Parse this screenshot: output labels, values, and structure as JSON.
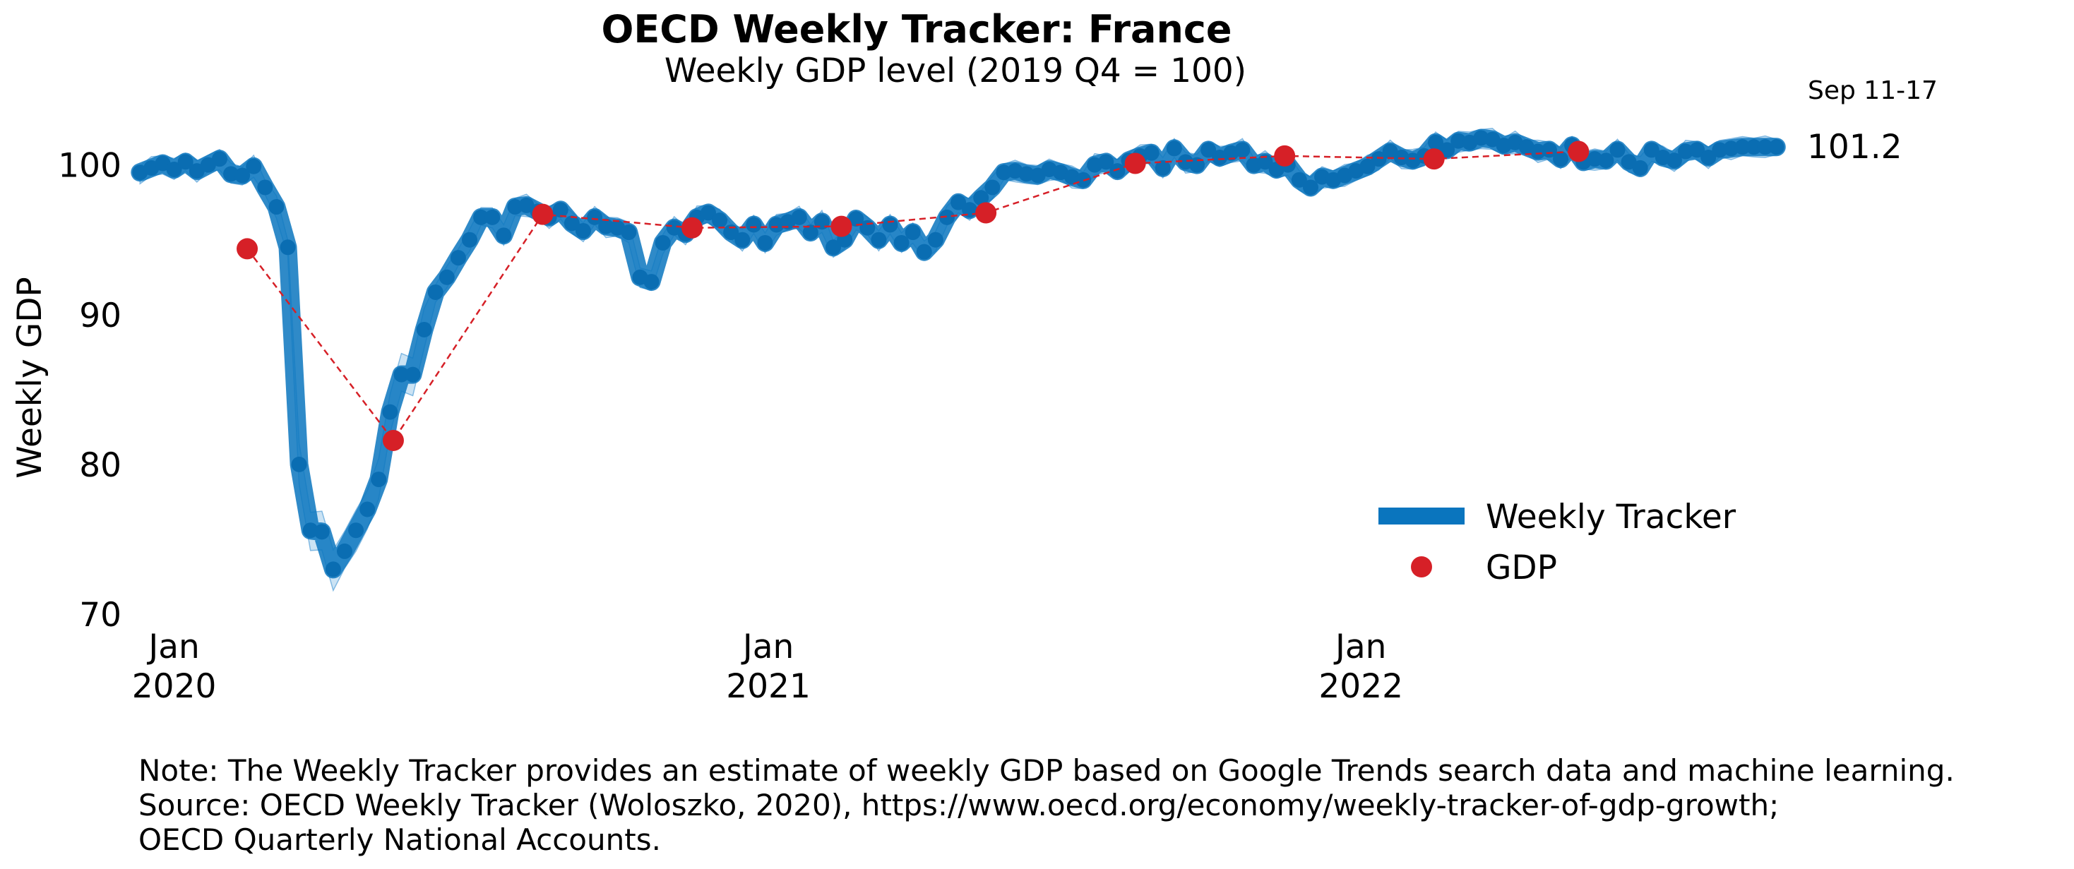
{
  "chart_data": {
    "type": "line",
    "title": "OECD Weekly Tracker: France",
    "subtitle": "Weekly GDP level (2019 Q4 = 100)",
    "ylabel": "Weekly GDP",
    "ylim": [
      70,
      103
    ],
    "yticks": [
      70,
      80,
      90,
      100
    ],
    "xlim": [
      "2019-12-10",
      "2022-09-18"
    ],
    "xticks": [
      {
        "date": "2020-01-01",
        "label_top": "Jan",
        "label_bottom": "2020"
      },
      {
        "date": "2021-01-01",
        "label_top": "Jan",
        "label_bottom": "2021"
      },
      {
        "date": "2022-01-01",
        "label_top": "Jan",
        "label_bottom": "2022"
      }
    ],
    "grid": false,
    "legend_position": "bottom-right",
    "latest_period_label": "Sep 11-17",
    "latest_value_label": "101.2",
    "colors": {
      "tracker": "#0a75be",
      "band": "#a9d0ec",
      "gdp": "#d62027"
    },
    "series": [
      {
        "name": "Weekly Tracker",
        "style": "thick-line",
        "x": [
          "2019-12-11",
          "2019-12-18",
          "2019-12-25",
          "2020-01-01",
          "2020-01-08",
          "2020-01-15",
          "2020-01-22",
          "2020-01-29",
          "2020-02-05",
          "2020-02-12",
          "2020-02-19",
          "2020-02-26",
          "2020-03-04",
          "2020-03-11",
          "2020-03-18",
          "2020-03-25",
          "2020-04-01",
          "2020-04-08",
          "2020-04-15",
          "2020-04-22",
          "2020-04-29",
          "2020-05-06",
          "2020-05-13",
          "2020-05-20",
          "2020-05-27",
          "2020-06-03",
          "2020-06-10",
          "2020-06-17",
          "2020-06-24",
          "2020-07-01",
          "2020-07-08",
          "2020-07-15",
          "2020-07-22",
          "2020-07-29",
          "2020-08-05",
          "2020-08-12",
          "2020-08-19",
          "2020-08-26",
          "2020-09-02",
          "2020-09-09",
          "2020-09-16",
          "2020-09-23",
          "2020-09-30",
          "2020-10-07",
          "2020-10-14",
          "2020-10-21",
          "2020-10-28",
          "2020-11-04",
          "2020-11-11",
          "2020-11-18",
          "2020-11-25",
          "2020-12-02",
          "2020-12-09",
          "2020-12-16",
          "2020-12-23",
          "2020-12-30",
          "2021-01-06",
          "2021-01-13",
          "2021-01-20",
          "2021-01-27",
          "2021-02-03",
          "2021-02-10",
          "2021-02-17",
          "2021-02-24",
          "2021-03-03",
          "2021-03-10",
          "2021-03-17",
          "2021-03-24",
          "2021-03-31",
          "2021-04-07",
          "2021-04-14",
          "2021-04-21",
          "2021-04-28",
          "2021-05-05",
          "2021-05-12",
          "2021-05-19",
          "2021-05-26",
          "2021-06-02",
          "2021-06-09",
          "2021-06-16",
          "2021-06-23",
          "2021-06-30",
          "2021-07-07",
          "2021-07-14",
          "2021-07-21",
          "2021-07-28",
          "2021-08-04",
          "2021-08-11",
          "2021-08-18",
          "2021-08-25",
          "2021-09-01",
          "2021-09-08",
          "2021-09-15",
          "2021-09-22",
          "2021-09-29",
          "2021-10-06",
          "2021-10-13",
          "2021-10-20",
          "2021-10-27",
          "2021-11-03",
          "2021-11-10",
          "2021-11-17",
          "2021-11-24",
          "2021-12-01",
          "2021-12-08",
          "2021-12-15",
          "2021-12-22",
          "2021-12-29",
          "2022-01-05",
          "2022-01-12",
          "2022-01-19",
          "2022-01-26",
          "2022-02-02",
          "2022-02-09",
          "2022-02-16",
          "2022-02-23",
          "2022-03-02",
          "2022-03-09",
          "2022-03-16",
          "2022-03-23",
          "2022-03-30",
          "2022-04-06",
          "2022-04-13",
          "2022-04-20",
          "2022-04-27",
          "2022-05-04",
          "2022-05-11",
          "2022-05-18",
          "2022-05-25",
          "2022-06-01",
          "2022-06-08",
          "2022-06-15",
          "2022-06-22",
          "2022-06-29",
          "2022-07-06",
          "2022-07-13",
          "2022-07-20",
          "2022-07-27",
          "2022-08-03",
          "2022-08-10",
          "2022-08-17",
          "2022-08-24",
          "2022-08-31",
          "2022-09-07",
          "2022-09-14"
        ],
        "values": [
          99.5,
          99.8,
          100.1,
          99.7,
          100.2,
          99.6,
          100.0,
          100.4,
          99.4,
          99.3,
          99.9,
          98.5,
          97.2,
          94.5,
          80.0,
          75.6,
          75.5,
          73.0,
          74.2,
          75.6,
          77.0,
          79.0,
          83.5,
          86.0,
          86.0,
          89.0,
          91.5,
          92.5,
          93.8,
          95.0,
          96.5,
          96.5,
          95.3,
          97.2,
          97.3,
          96.9,
          96.5,
          97.0,
          96.1,
          95.6,
          96.5,
          95.9,
          95.8,
          95.5,
          92.5,
          92.2,
          94.8,
          95.8,
          95.4,
          96.5,
          96.8,
          96.3,
          95.5,
          95.0,
          96.0,
          94.8,
          96.0,
          96.2,
          96.5,
          95.5,
          96.2,
          94.5,
          95.0,
          96.4,
          95.8,
          95.0,
          96.0,
          94.8,
          95.5,
          94.2,
          95.0,
          96.5,
          97.5,
          97.0,
          97.8,
          98.5,
          99.5,
          99.6,
          99.4,
          99.3,
          99.7,
          99.5,
          99.2,
          99.0,
          100.0,
          100.2,
          99.6,
          100.3,
          100.6,
          100.8,
          99.8,
          101.1,
          100.2,
          100.0,
          101.0,
          100.5,
          100.8,
          101.0,
          100.0,
          100.2,
          99.7,
          100.0,
          99.0,
          98.5,
          99.2,
          99.0,
          99.3,
          99.6,
          99.9,
          100.4,
          100.9,
          100.5,
          100.3,
          100.6,
          101.5,
          101.0,
          101.6,
          101.5,
          101.8,
          101.7,
          101.3,
          101.5,
          101.2,
          100.9,
          101.0,
          100.4,
          101.3,
          100.2,
          100.4,
          100.3,
          101.0,
          100.2,
          99.8,
          101.0,
          100.5,
          100.3,
          100.9,
          101.0,
          100.5,
          101.0,
          101.1,
          101.2,
          101.2,
          101.2,
          101.2
        ]
      },
      {
        "name": "GDP",
        "style": "dots-dashed",
        "x": [
          "2020-02-15",
          "2020-05-15",
          "2020-08-15",
          "2020-11-15",
          "2021-02-15",
          "2021-05-15",
          "2021-08-15",
          "2021-11-15",
          "2022-02-15",
          "2022-05-15"
        ],
        "values": [
          94.4,
          81.6,
          96.7,
          95.8,
          95.9,
          96.8,
          100.1,
          100.6,
          100.4,
          100.9
        ]
      }
    ]
  },
  "note": {
    "line1": "Note: The Weekly Tracker provides an estimate of weekly GDP based on Google Trends search data and machine learning.",
    "line2": "Source: OECD Weekly Tracker (Woloszko, 2020), https://www.oecd.org/economy/weekly-tracker-of-gdp-growth;",
    "line3": "OECD Quarterly National Accounts."
  }
}
